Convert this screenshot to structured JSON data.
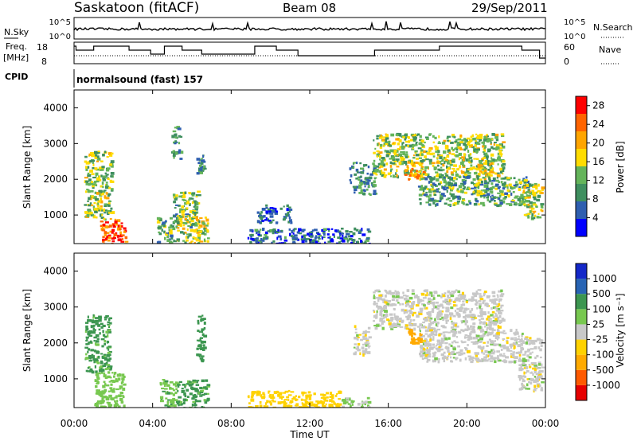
{
  "header": {
    "station": "Saskatoon (fitACF)",
    "beam": "Beam 08",
    "date": "29/Sep/2011"
  },
  "noise_panel": {
    "left_label": "N.Sky",
    "right_label": "N.Search",
    "ticks": [
      "10^5",
      "10^0"
    ]
  },
  "freq_panel": {
    "left_label_1": "Freq.",
    "left_label_2": "[MHz]",
    "left_ticks": [
      "18",
      "8"
    ],
    "right_label": "Nave",
    "right_ticks": [
      "60",
      "0"
    ]
  },
  "cpid": {
    "label": "CPID",
    "program": "normalsound (fast) 157"
  },
  "colors": {
    "power_scale": [
      "#0000ff",
      "#2f5fb0",
      "#3f8f5f",
      "#64b45a",
      "#ffdc00",
      "#ffa500",
      "#ff6400",
      "#ff0000"
    ],
    "velocity_scale": [
      "#e60000",
      "#ff5a00",
      "#ffaa00",
      "#ffd200",
      "#c8c8c8",
      "#78c850",
      "#3c9650",
      "#2864b4",
      "#1428c8"
    ]
  },
  "chart_data": [
    {
      "type": "heatmap",
      "name": "power",
      "xlabel": "Time UT",
      "ylabel": "Slant Range [km]",
      "ylim": [
        200,
        4500
      ],
      "xlim": [
        0,
        24
      ],
      "x_ticks": [
        "00:00",
        "04:00",
        "08:00",
        "12:00",
        "16:00",
        "20:00",
        "00:00"
      ],
      "y_ticks": [
        1000,
        2000,
        3000,
        4000
      ],
      "colorbar": {
        "label": "Power [dB]",
        "ticks": [
          "4",
          "8",
          "12",
          "16",
          "20",
          "24",
          "28"
        ],
        "range": [
          0,
          30
        ]
      },
      "regions": [
        {
          "t": [
            0.5,
            1.9
          ],
          "r": [
            900,
            2800
          ],
          "v": 15
        },
        {
          "t": [
            1.3,
            2.6
          ],
          "r": [
            200,
            900
          ],
          "v": 26
        },
        {
          "t": [
            4.2,
            5.1
          ],
          "r": [
            200,
            1000
          ],
          "v": 12
        },
        {
          "t": [
            4.9,
            5.4
          ],
          "r": [
            2600,
            3500
          ],
          "v": 9
        },
        {
          "t": [
            5.0,
            6.3
          ],
          "r": [
            700,
            1700
          ],
          "v": 13
        },
        {
          "t": [
            5.2,
            6.8
          ],
          "r": [
            200,
            1000
          ],
          "v": 16
        },
        {
          "t": [
            6.2,
            6.6
          ],
          "r": [
            2200,
            2700
          ],
          "v": 10
        },
        {
          "t": [
            8.8,
            15.0
          ],
          "r": [
            200,
            650
          ],
          "v": 7
        },
        {
          "t": [
            9.3,
            11.0
          ],
          "r": [
            800,
            1300
          ],
          "v": 6
        },
        {
          "t": [
            14.0,
            15.3
          ],
          "r": [
            1600,
            2500
          ],
          "v": 10
        },
        {
          "t": [
            15.2,
            21.8
          ],
          "r": [
            2100,
            3300
          ],
          "v": 15
        },
        {
          "t": [
            16.8,
            17.8
          ],
          "r": [
            2000,
            2500
          ],
          "v": 21
        },
        {
          "t": [
            20.5,
            21.3
          ],
          "r": [
            2000,
            2500
          ],
          "v": 18
        },
        {
          "t": [
            17.5,
            23.2
          ],
          "r": [
            1300,
            2100
          ],
          "v": 12
        },
        {
          "t": [
            22.8,
            23.8
          ],
          "r": [
            900,
            1900
          ],
          "v": 16
        }
      ]
    },
    {
      "type": "heatmap",
      "name": "velocity",
      "xlabel": "Time UT",
      "ylabel": "Slant Range [km]",
      "ylim": [
        200,
        4500
      ],
      "xlim": [
        0,
        24
      ],
      "x_ticks": [
        "00:00",
        "04:00",
        "08:00",
        "12:00",
        "16:00",
        "20:00",
        "00:00"
      ],
      "y_ticks": [
        1000,
        2000,
        3000,
        4000
      ],
      "colorbar": {
        "label": "Velocity [m s⁻¹]",
        "ticks": [
          "1000",
          "500",
          "100",
          "25",
          "-25",
          "-100",
          "-500",
          "-1000"
        ]
      },
      "regions": [
        {
          "t": [
            0.5,
            1.8
          ],
          "r": [
            1200,
            2800
          ],
          "v": 120
        },
        {
          "t": [
            1.0,
            2.5
          ],
          "r": [
            200,
            1200
          ],
          "v": 60
        },
        {
          "t": [
            4.3,
            5.2
          ],
          "r": [
            200,
            1000
          ],
          "v": 80
        },
        {
          "t": [
            5.2,
            6.8
          ],
          "r": [
            200,
            1000
          ],
          "v": 120
        },
        {
          "t": [
            6.2,
            6.6
          ],
          "r": [
            1500,
            2800
          ],
          "v": 130
        },
        {
          "t": [
            8.8,
            13.5
          ],
          "r": [
            200,
            700
          ],
          "v": -70
        },
        {
          "t": [
            13.5,
            15.0
          ],
          "r": [
            200,
            500
          ],
          "v": 40
        },
        {
          "t": [
            14.2,
            15.0
          ],
          "r": [
            1700,
            2500
          ],
          "v": 0
        },
        {
          "t": [
            15.2,
            21.8
          ],
          "r": [
            2400,
            3500
          ],
          "v": 0
        },
        {
          "t": [
            17.0,
            17.6
          ],
          "r": [
            2000,
            2400
          ],
          "v": -150
        },
        {
          "t": [
            17.5,
            22.8
          ],
          "r": [
            1500,
            2400
          ],
          "v": 0
        },
        {
          "t": [
            22.6,
            23.8
          ],
          "r": [
            700,
            2200
          ],
          "v": 0
        }
      ]
    }
  ]
}
